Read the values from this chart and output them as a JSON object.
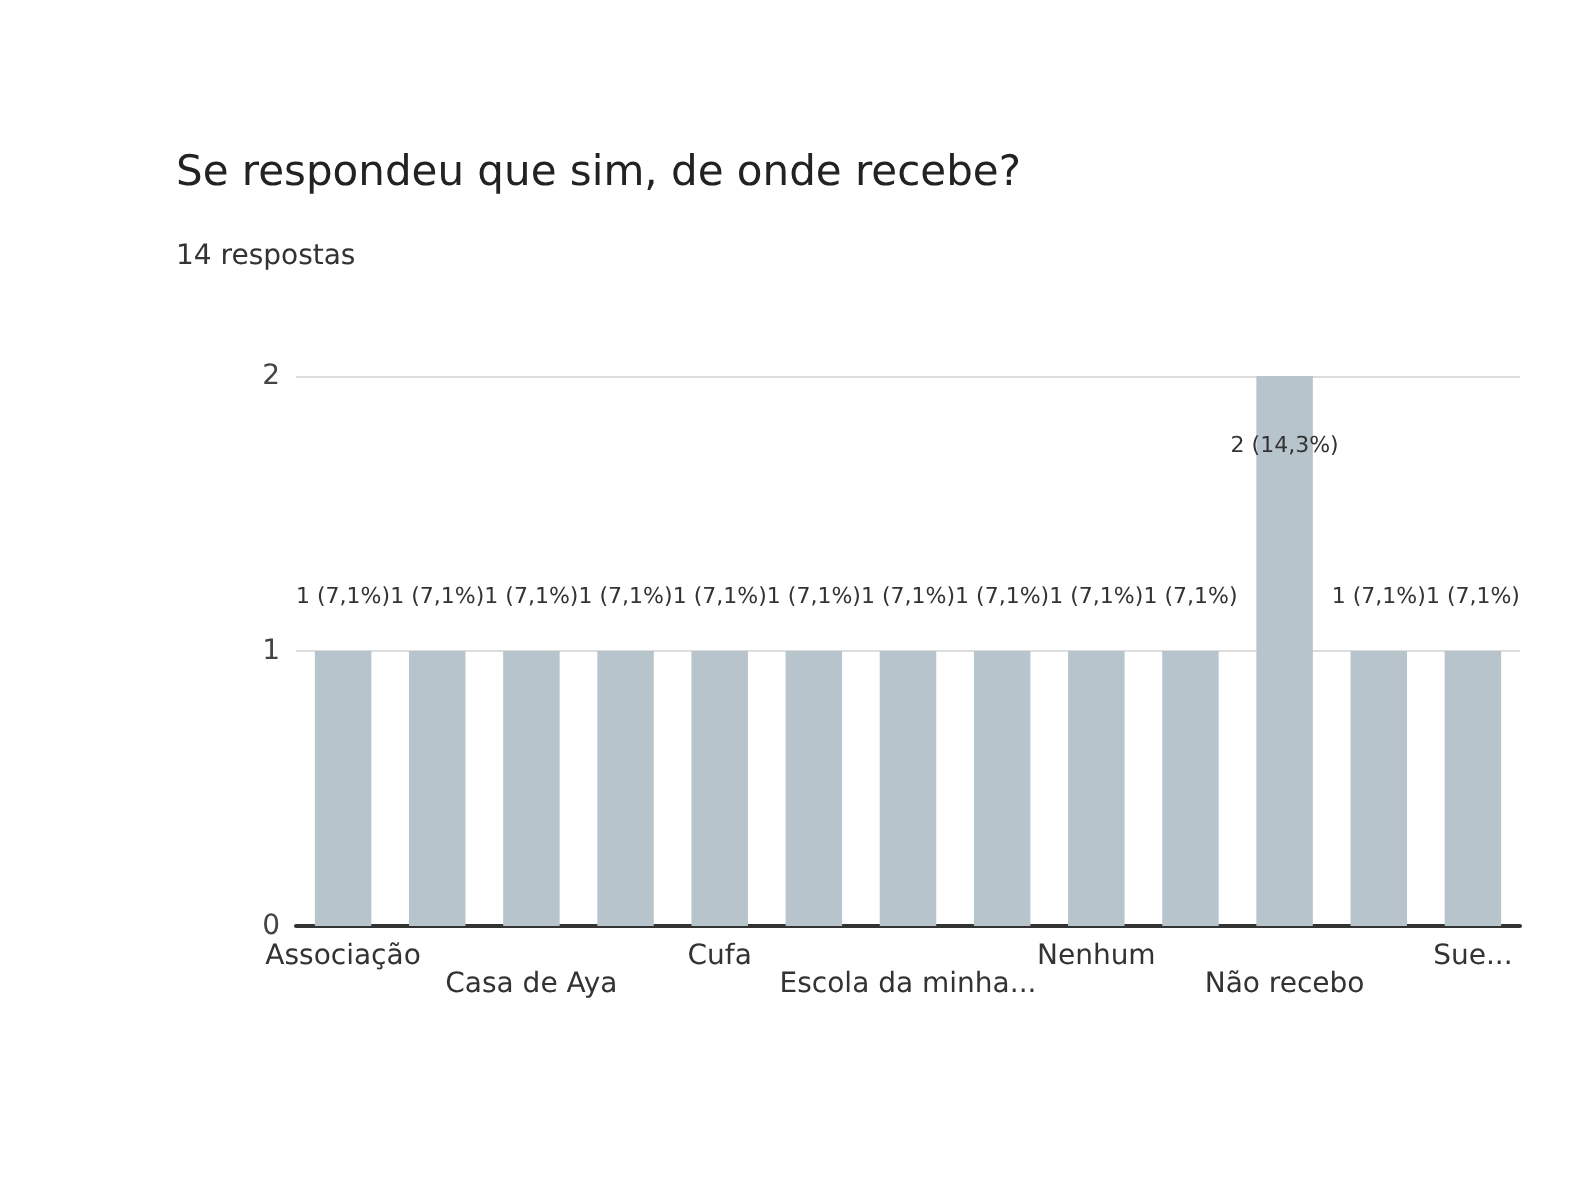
{
  "chart_data": {
    "type": "bar",
    "title": "Se respondeu que sim, de onde recebe?",
    "subtitle": "14 respostas",
    "categories": [
      "Associação",
      null,
      "Casa de Aya",
      null,
      "Cufa",
      null,
      "Escola da minha...",
      null,
      "Nenhum",
      null,
      "Não recebo",
      null,
      "Sue..."
    ],
    "values": [
      1,
      1,
      1,
      1,
      1,
      1,
      1,
      1,
      1,
      1,
      2,
      1,
      1
    ],
    "value_labels": [
      "1 (7,1%)",
      "1 (7,1%)",
      "1 (7,1%)",
      "1 (7,1%)",
      "1 (7,1%)",
      "1 (7,1%)",
      "1 (7,1%)",
      "1 (7,1%)",
      "1 (7,1%)",
      "1 (7,1%)",
      "2 (14,3%)",
      "1 (7,1%)",
      "1 (7,1%)"
    ],
    "color": "#b8c4cc",
    "ylim": [
      0,
      2
    ],
    "yticks": [
      0,
      1,
      2
    ],
    "grid": "y"
  }
}
